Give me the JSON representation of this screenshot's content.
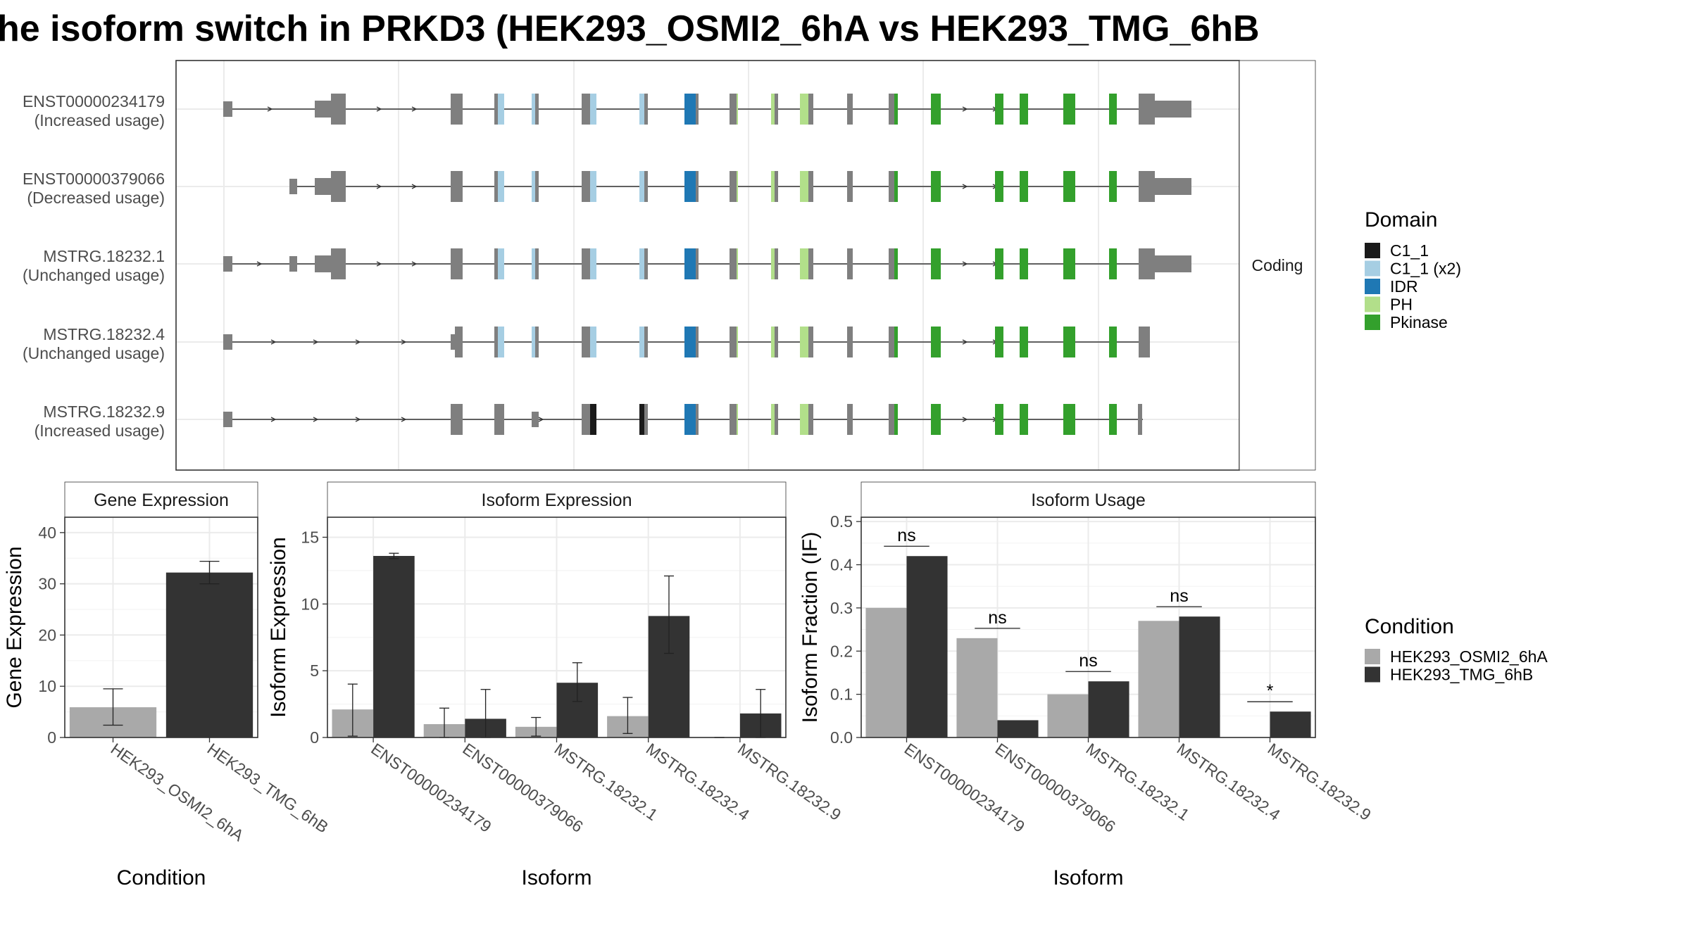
{
  "title": "he isoform switch in PRKD3 (HEK293_OSMI2_6hA vs HEK293_TMG_6hB",
  "colors": {
    "cond1": "#a9a9a9",
    "cond2": "#333333",
    "exon": "#7f7f7f",
    "C1_1": "#1a1a1a",
    "C1_1_x2": "#a6cee3",
    "IDR": "#1f78b4",
    "PH": "#b2df8a",
    "Pkinase": "#33a02c"
  },
  "chart_data": [
    {
      "id": "structure",
      "type": "table",
      "facet_label": "Coding",
      "transcripts": [
        {
          "name": "ENST00000234179",
          "status": "(Increased usage)"
        },
        {
          "name": "ENST00000379066",
          "status": "(Decreased usage)"
        },
        {
          "name": "MSTRG.18232.1",
          "status": "(Unchanged usage)"
        },
        {
          "name": "MSTRG.18232.4",
          "status": "(Unchanged usage)"
        },
        {
          "name": "MSTRG.18232.9",
          "status": "(Increased usage)"
        }
      ],
      "legend_title": "Domain",
      "legend": [
        {
          "label": "C1_1",
          "color_key": "C1_1"
        },
        {
          "label": "C1_1 (x2)",
          "color_key": "C1_1_x2"
        },
        {
          "label": "IDR",
          "color_key": "IDR"
        },
        {
          "label": "PH",
          "color_key": "PH"
        },
        {
          "label": "Pkinase",
          "color_key": "Pkinase"
        }
      ]
    },
    {
      "id": "gene",
      "type": "bar",
      "title": "Gene Expression",
      "xlabel": "Condition",
      "ylabel": "Gene Expression",
      "ylim": [
        0,
        43
      ],
      "yticks": [
        0,
        10,
        20,
        30,
        40
      ],
      "categories": [
        "HEK293_OSMI2_6hA",
        "HEK293_TMG_6hB"
      ],
      "values": [
        5.9,
        32.2
      ],
      "err_low": [
        2.4,
        30.0
      ],
      "err_high": [
        9.5,
        34.4
      ]
    },
    {
      "id": "isoexp",
      "type": "bar",
      "title": "Isoform Expression",
      "xlabel": "Isoform",
      "ylabel": "Isoform Expression",
      "ylim": [
        0,
        16.5
      ],
      "yticks": [
        0,
        5,
        10,
        15
      ],
      "categories": [
        "ENST00000234179",
        "ENST00000379066",
        "MSTRG.18232.1",
        "MSTRG.18232.4",
        "MSTRG.18232.9"
      ],
      "series": [
        {
          "name": "HEK293_OSMI2_6hA",
          "values": [
            2.1,
            1.0,
            0.8,
            1.6,
            0.0
          ],
          "err_low": [
            0.1,
            0.0,
            0.1,
            0.3,
            0.0
          ],
          "err_high": [
            4.0,
            2.2,
            1.5,
            3.0,
            0.0
          ]
        },
        {
          "name": "HEK293_TMG_6hB",
          "values": [
            13.6,
            1.4,
            4.1,
            9.1,
            1.8
          ],
          "err_low": [
            13.4,
            0.0,
            2.7,
            6.3,
            0.0
          ],
          "err_high": [
            13.8,
            3.6,
            5.6,
            12.1,
            3.6
          ]
        }
      ]
    },
    {
      "id": "isouse",
      "type": "bar",
      "title": "Isoform Usage",
      "xlabel": "Isoform",
      "ylabel": "Isoform Fraction (IF)",
      "ylim": [
        0,
        0.51
      ],
      "yticks": [
        0.0,
        0.1,
        0.2,
        0.3,
        0.4,
        0.5
      ],
      "ytick_labels": [
        "0.0",
        "0.1",
        "0.2",
        "0.3",
        "0.4",
        "0.5"
      ],
      "categories": [
        "ENST00000234179",
        "ENST00000379066",
        "MSTRG.18232.1",
        "MSTRG.18232.4",
        "MSTRG.18232.9"
      ],
      "series": [
        {
          "name": "HEK293_OSMI2_6hA",
          "values": [
            0.3,
            0.23,
            0.1,
            0.27,
            0.0
          ]
        },
        {
          "name": "HEK293_TMG_6hB",
          "values": [
            0.42,
            0.04,
            0.13,
            0.28,
            0.06
          ]
        }
      ],
      "significance": [
        "ns",
        "ns",
        "ns",
        "ns",
        "*"
      ]
    }
  ],
  "condition_legend": {
    "title": "Condition",
    "items": [
      {
        "label": "HEK293_OSMI2_6hA",
        "color_key": "cond1"
      },
      {
        "label": "HEK293_TMG_6hB",
        "color_key": "cond2"
      }
    ]
  }
}
